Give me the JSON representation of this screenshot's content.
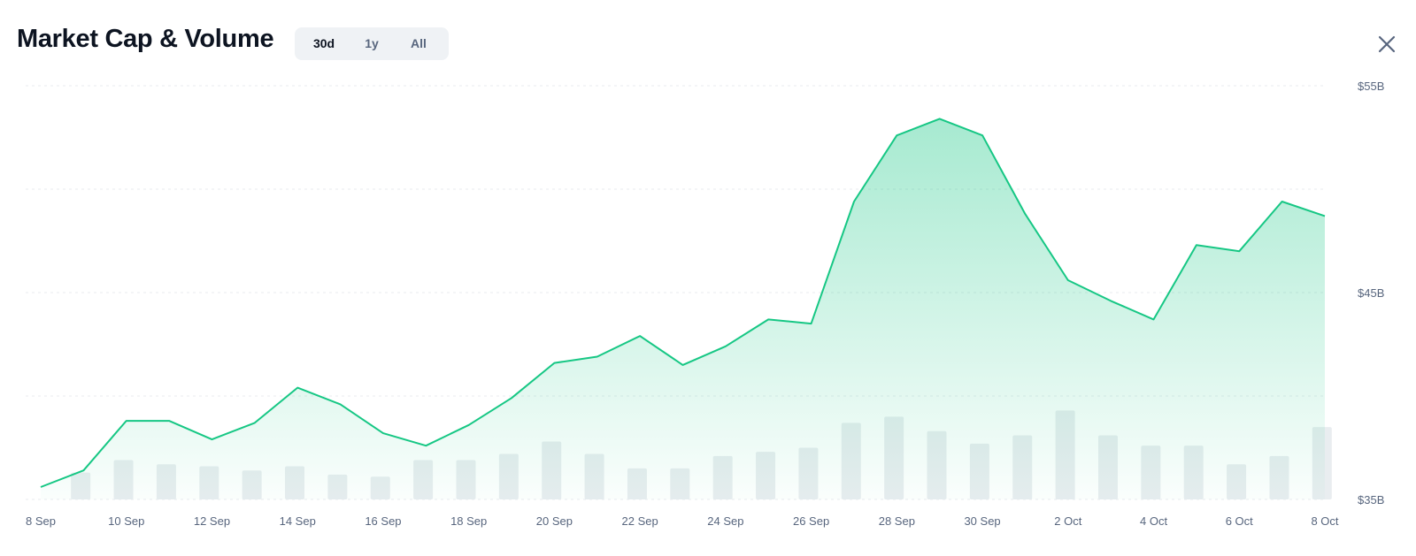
{
  "header": {
    "title": "Market Cap & Volume",
    "ranges": [
      {
        "label": "30d",
        "active": true
      },
      {
        "label": "1y",
        "active": false
      },
      {
        "label": "All",
        "active": false
      }
    ],
    "close_icon": "close-icon"
  },
  "colors": {
    "line": "#16c784",
    "area_top": "#16c784",
    "volume_bar": "#e9edf0",
    "grid": "#e8ebef",
    "axis_text": "#58667e"
  },
  "chart_data": {
    "type": "area",
    "x": [
      "8 Sep",
      "9 Sep",
      "10 Sep",
      "11 Sep",
      "12 Sep",
      "13 Sep",
      "14 Sep",
      "15 Sep",
      "16 Sep",
      "17 Sep",
      "18 Sep",
      "19 Sep",
      "20 Sep",
      "21 Sep",
      "22 Sep",
      "23 Sep",
      "24 Sep",
      "25 Sep",
      "26 Sep",
      "27 Sep",
      "28 Sep",
      "29 Sep",
      "30 Sep",
      "1 Oct",
      "2 Oct",
      "3 Oct",
      "4 Oct",
      "5 Oct",
      "6 Oct",
      "7 Oct",
      "8 Oct"
    ],
    "x_tick_labels": [
      "8 Sep",
      "10 Sep",
      "12 Sep",
      "14 Sep",
      "16 Sep",
      "18 Sep",
      "20 Sep",
      "22 Sep",
      "24 Sep",
      "26 Sep",
      "28 Sep",
      "30 Sep",
      "2 Oct",
      "4 Oct",
      "6 Oct",
      "8 Oct"
    ],
    "series": [
      {
        "values": [
          35.6,
          36.4,
          38.8,
          38.8,
          37.9,
          38.7,
          40.4,
          39.6,
          38.2,
          37.6,
          38.6,
          39.9,
          41.6,
          41.9,
          42.9,
          41.5,
          42.4,
          43.7,
          43.5,
          49.4,
          52.6,
          53.4,
          52.6,
          48.8,
          45.6,
          44.6,
          43.7,
          47.3,
          47.0,
          49.4,
          48.7
        ]
      },
      {
        "values": [
          36.3,
          36.3,
          36.9,
          36.7,
          36.6,
          36.4,
          36.6,
          36.2,
          36.1,
          36.9,
          36.9,
          37.2,
          37.8,
          37.2,
          36.5,
          36.5,
          37.1,
          37.3,
          37.5,
          38.7,
          39.0,
          38.3,
          37.7,
          38.1,
          39.3,
          38.1,
          37.6,
          37.6,
          36.7,
          37.1,
          38.5
        ]
      }
    ],
    "y_tick_labels": [
      "$55B",
      "$45B",
      "$35B"
    ],
    "ylim": [
      35,
      55
    ],
    "grid": true
  }
}
